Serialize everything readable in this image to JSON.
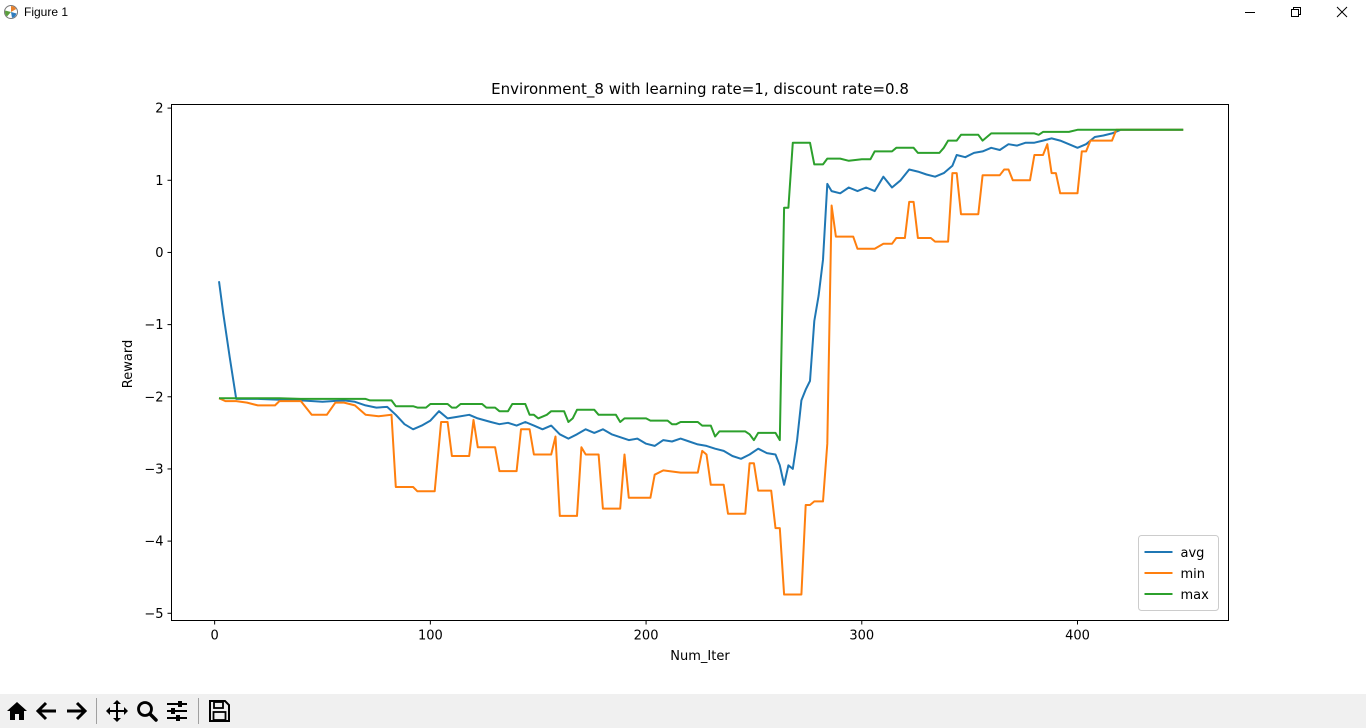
{
  "window": {
    "title": "Figure 1",
    "controls": {
      "minimize": "minimize-icon",
      "maximize": "restore-icon",
      "close": "close-icon"
    }
  },
  "toolbar": {
    "buttons": [
      {
        "name": "home-button",
        "icon": "home-icon"
      },
      {
        "name": "back-button",
        "icon": "back-arrow-icon"
      },
      {
        "name": "forward-button",
        "icon": "forward-arrow-icon"
      },
      {
        "name": "pan-button",
        "icon": "move-icon"
      },
      {
        "name": "zoom-button",
        "icon": "magnifier-icon"
      },
      {
        "name": "configure-subplots-button",
        "icon": "sliders-icon"
      },
      {
        "name": "save-button",
        "icon": "floppy-disk-icon"
      }
    ]
  },
  "chart_data": {
    "type": "line",
    "title": "Environment_8 with learning rate=1, discount rate=0.8",
    "xlabel": "Num_Iter",
    "ylabel": "Reward",
    "xlim": [
      -20,
      470
    ],
    "ylim": [
      -5.1,
      2.05
    ],
    "xticks": [
      0,
      100,
      200,
      300,
      400
    ],
    "yticks": [
      -5,
      -4,
      -3,
      -2,
      -1,
      0,
      1,
      2
    ],
    "grid": false,
    "legend_position": "lower right",
    "series": [
      {
        "name": "avg",
        "color": "#1f77b4",
        "points": [
          [
            2,
            -0.4
          ],
          [
            4,
            -0.85
          ],
          [
            7,
            -1.45
          ],
          [
            10,
            -2.03
          ],
          [
            20,
            -2.03
          ],
          [
            30,
            -2.04
          ],
          [
            40,
            -2.05
          ],
          [
            50,
            -2.07
          ],
          [
            60,
            -2.05
          ],
          [
            65,
            -2.07
          ],
          [
            70,
            -2.12
          ],
          [
            75,
            -2.15
          ],
          [
            80,
            -2.14
          ],
          [
            84,
            -2.25
          ],
          [
            88,
            -2.38
          ],
          [
            92,
            -2.45
          ],
          [
            96,
            -2.4
          ],
          [
            100,
            -2.33
          ],
          [
            104,
            -2.2
          ],
          [
            108,
            -2.3
          ],
          [
            112,
            -2.28
          ],
          [
            118,
            -2.25
          ],
          [
            122,
            -2.3
          ],
          [
            128,
            -2.35
          ],
          [
            132,
            -2.38
          ],
          [
            136,
            -2.36
          ],
          [
            140,
            -2.4
          ],
          [
            144,
            -2.35
          ],
          [
            148,
            -2.4
          ],
          [
            152,
            -2.45
          ],
          [
            156,
            -2.4
          ],
          [
            160,
            -2.52
          ],
          [
            164,
            -2.58
          ],
          [
            168,
            -2.52
          ],
          [
            172,
            -2.45
          ],
          [
            176,
            -2.5
          ],
          [
            180,
            -2.45
          ],
          [
            184,
            -2.52
          ],
          [
            188,
            -2.56
          ],
          [
            192,
            -2.6
          ],
          [
            196,
            -2.58
          ],
          [
            200,
            -2.65
          ],
          [
            204,
            -2.68
          ],
          [
            208,
            -2.6
          ],
          [
            212,
            -2.62
          ],
          [
            216,
            -2.58
          ],
          [
            220,
            -2.62
          ],
          [
            224,
            -2.66
          ],
          [
            228,
            -2.68
          ],
          [
            232,
            -2.72
          ],
          [
            236,
            -2.75
          ],
          [
            240,
            -2.82
          ],
          [
            244,
            -2.86
          ],
          [
            248,
            -2.8
          ],
          [
            252,
            -2.72
          ],
          [
            256,
            -2.78
          ],
          [
            260,
            -2.8
          ],
          [
            262,
            -2.95
          ],
          [
            264,
            -3.22
          ],
          [
            266,
            -2.95
          ],
          [
            268,
            -3.0
          ],
          [
            270,
            -2.6
          ],
          [
            272,
            -2.05
          ],
          [
            274,
            -1.9
          ],
          [
            276,
            -1.78
          ],
          [
            278,
            -0.95
          ],
          [
            280,
            -0.6
          ],
          [
            282,
            -0.1
          ],
          [
            284,
            0.95
          ],
          [
            286,
            0.85
          ],
          [
            290,
            0.82
          ],
          [
            294,
            0.9
          ],
          [
            298,
            0.85
          ],
          [
            302,
            0.9
          ],
          [
            306,
            0.85
          ],
          [
            310,
            1.05
          ],
          [
            314,
            0.9
          ],
          [
            318,
            1.0
          ],
          [
            322,
            1.15
          ],
          [
            326,
            1.12
          ],
          [
            330,
            1.08
          ],
          [
            334,
            1.05
          ],
          [
            338,
            1.1
          ],
          [
            342,
            1.2
          ],
          [
            344,
            1.35
          ],
          [
            348,
            1.32
          ],
          [
            352,
            1.38
          ],
          [
            356,
            1.4
          ],
          [
            360,
            1.45
          ],
          [
            364,
            1.42
          ],
          [
            368,
            1.5
          ],
          [
            372,
            1.48
          ],
          [
            376,
            1.52
          ],
          [
            380,
            1.52
          ],
          [
            384,
            1.55
          ],
          [
            388,
            1.58
          ],
          [
            392,
            1.55
          ],
          [
            396,
            1.5
          ],
          [
            400,
            1.45
          ],
          [
            404,
            1.5
          ],
          [
            408,
            1.6
          ],
          [
            412,
            1.62
          ],
          [
            416,
            1.65
          ],
          [
            420,
            1.7
          ],
          [
            449,
            1.7
          ]
        ]
      },
      {
        "name": "min",
        "color": "#ff7f0e",
        "points": [
          [
            2,
            -2.02
          ],
          [
            5,
            -2.06
          ],
          [
            10,
            -2.06
          ],
          [
            15,
            -2.08
          ],
          [
            20,
            -2.12
          ],
          [
            28,
            -2.12
          ],
          [
            30,
            -2.06
          ],
          [
            40,
            -2.06
          ],
          [
            45,
            -2.25
          ],
          [
            52,
            -2.25
          ],
          [
            56,
            -2.08
          ],
          [
            60,
            -2.08
          ],
          [
            65,
            -2.12
          ],
          [
            70,
            -2.25
          ],
          [
            76,
            -2.27
          ],
          [
            82,
            -2.25
          ],
          [
            84,
            -3.25
          ],
          [
            92,
            -3.25
          ],
          [
            94,
            -3.31
          ],
          [
            102,
            -3.31
          ],
          [
            105,
            -2.35
          ],
          [
            108,
            -2.35
          ],
          [
            110,
            -2.82
          ],
          [
            118,
            -2.82
          ],
          [
            120,
            -2.32
          ],
          [
            122,
            -2.7
          ],
          [
            130,
            -2.7
          ],
          [
            132,
            -3.03
          ],
          [
            140,
            -3.03
          ],
          [
            142,
            -2.45
          ],
          [
            146,
            -2.45
          ],
          [
            148,
            -2.8
          ],
          [
            156,
            -2.8
          ],
          [
            158,
            -2.55
          ],
          [
            160,
            -3.65
          ],
          [
            168,
            -3.65
          ],
          [
            170,
            -2.7
          ],
          [
            172,
            -2.8
          ],
          [
            178,
            -2.8
          ],
          [
            180,
            -3.55
          ],
          [
            188,
            -3.55
          ],
          [
            190,
            -2.8
          ],
          [
            192,
            -3.4
          ],
          [
            202,
            -3.4
          ],
          [
            204,
            -3.08
          ],
          [
            208,
            -3.02
          ],
          [
            216,
            -3.05
          ],
          [
            224,
            -3.05
          ],
          [
            226,
            -2.75
          ],
          [
            228,
            -2.8
          ],
          [
            230,
            -3.22
          ],
          [
            236,
            -3.22
          ],
          [
            238,
            -3.62
          ],
          [
            246,
            -3.62
          ],
          [
            248,
            -2.92
          ],
          [
            250,
            -2.92
          ],
          [
            252,
            -3.3
          ],
          [
            258,
            -3.3
          ],
          [
            260,
            -3.82
          ],
          [
            262,
            -3.82
          ],
          [
            264,
            -4.74
          ],
          [
            272,
            -4.74
          ],
          [
            274,
            -3.5
          ],
          [
            276,
            -3.5
          ],
          [
            278,
            -3.45
          ],
          [
            282,
            -3.45
          ],
          [
            284,
            -2.65
          ],
          [
            286,
            0.65
          ],
          [
            288,
            0.22
          ],
          [
            296,
            0.22
          ],
          [
            298,
            0.05
          ],
          [
            306,
            0.05
          ],
          [
            310,
            0.12
          ],
          [
            314,
            0.12
          ],
          [
            316,
            0.2
          ],
          [
            320,
            0.2
          ],
          [
            322,
            0.7
          ],
          [
            324,
            0.7
          ],
          [
            326,
            0.2
          ],
          [
            332,
            0.2
          ],
          [
            334,
            0.15
          ],
          [
            340,
            0.15
          ],
          [
            342,
            1.1
          ],
          [
            344,
            1.1
          ],
          [
            346,
            0.53
          ],
          [
            354,
            0.53
          ],
          [
            356,
            1.07
          ],
          [
            364,
            1.07
          ],
          [
            366,
            1.15
          ],
          [
            368,
            1.15
          ],
          [
            370,
            1.0
          ],
          [
            378,
            1.0
          ],
          [
            380,
            1.35
          ],
          [
            384,
            1.35
          ],
          [
            386,
            1.5
          ],
          [
            388,
            1.1
          ],
          [
            390,
            1.1
          ],
          [
            392,
            0.82
          ],
          [
            400,
            0.82
          ],
          [
            402,
            1.4
          ],
          [
            404,
            1.4
          ],
          [
            406,
            1.55
          ],
          [
            416,
            1.55
          ],
          [
            418,
            1.7
          ],
          [
            449,
            1.7
          ]
        ]
      },
      {
        "name": "max",
        "color": "#2ca02c",
        "points": [
          [
            2,
            -2.02
          ],
          [
            30,
            -2.02
          ],
          [
            40,
            -2.03
          ],
          [
            70,
            -2.03
          ],
          [
            72,
            -2.05
          ],
          [
            82,
            -2.05
          ],
          [
            84,
            -2.13
          ],
          [
            92,
            -2.13
          ],
          [
            94,
            -2.15
          ],
          [
            98,
            -2.15
          ],
          [
            100,
            -2.1
          ],
          [
            108,
            -2.1
          ],
          [
            110,
            -2.15
          ],
          [
            112,
            -2.15
          ],
          [
            114,
            -2.1
          ],
          [
            124,
            -2.1
          ],
          [
            126,
            -2.15
          ],
          [
            130,
            -2.15
          ],
          [
            132,
            -2.2
          ],
          [
            136,
            -2.2
          ],
          [
            138,
            -2.1
          ],
          [
            144,
            -2.1
          ],
          [
            146,
            -2.25
          ],
          [
            148,
            -2.25
          ],
          [
            150,
            -2.3
          ],
          [
            154,
            -2.25
          ],
          [
            156,
            -2.2
          ],
          [
            162,
            -2.2
          ],
          [
            164,
            -2.35
          ],
          [
            166,
            -2.3
          ],
          [
            168,
            -2.18
          ],
          [
            176,
            -2.18
          ],
          [
            178,
            -2.25
          ],
          [
            186,
            -2.25
          ],
          [
            188,
            -2.35
          ],
          [
            190,
            -2.3
          ],
          [
            200,
            -2.3
          ],
          [
            202,
            -2.33
          ],
          [
            210,
            -2.33
          ],
          [
            212,
            -2.38
          ],
          [
            214,
            -2.38
          ],
          [
            216,
            -2.35
          ],
          [
            224,
            -2.35
          ],
          [
            226,
            -2.4
          ],
          [
            230,
            -2.4
          ],
          [
            232,
            -2.55
          ],
          [
            234,
            -2.48
          ],
          [
            246,
            -2.48
          ],
          [
            248,
            -2.52
          ],
          [
            250,
            -2.6
          ],
          [
            252,
            -2.5
          ],
          [
            260,
            -2.5
          ],
          [
            262,
            -2.6
          ],
          [
            264,
            0.62
          ],
          [
            266,
            0.62
          ],
          [
            268,
            1.52
          ],
          [
            276,
            1.52
          ],
          [
            278,
            1.22
          ],
          [
            282,
            1.22
          ],
          [
            284,
            1.3
          ],
          [
            290,
            1.3
          ],
          [
            294,
            1.27
          ],
          [
            300,
            1.29
          ],
          [
            304,
            1.29
          ],
          [
            306,
            1.4
          ],
          [
            314,
            1.4
          ],
          [
            316,
            1.45
          ],
          [
            324,
            1.45
          ],
          [
            326,
            1.38
          ],
          [
            336,
            1.38
          ],
          [
            338,
            1.45
          ],
          [
            340,
            1.55
          ],
          [
            344,
            1.55
          ],
          [
            346,
            1.63
          ],
          [
            354,
            1.63
          ],
          [
            356,
            1.55
          ],
          [
            358,
            1.6
          ],
          [
            360,
            1.65
          ],
          [
            380,
            1.65
          ],
          [
            382,
            1.63
          ],
          [
            384,
            1.67
          ],
          [
            396,
            1.67
          ],
          [
            400,
            1.7
          ],
          [
            449,
            1.7
          ]
        ]
      }
    ]
  }
}
